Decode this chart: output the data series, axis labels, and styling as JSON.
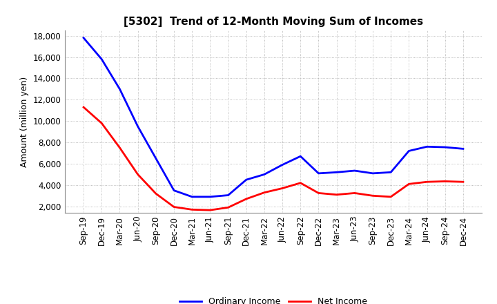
{
  "title": "[5302]  Trend of 12-Month Moving Sum of Incomes",
  "ylabel": "Amount (million yen)",
  "x_labels": [
    "Sep-19",
    "Dec-19",
    "Mar-20",
    "Jun-20",
    "Sep-20",
    "Dec-20",
    "Mar-21",
    "Jun-21",
    "Sep-21",
    "Dec-21",
    "Mar-22",
    "Jun-22",
    "Sep-22",
    "Dec-22",
    "Mar-23",
    "Jun-23",
    "Sep-23",
    "Dec-23",
    "Mar-24",
    "Jun-24",
    "Sep-24",
    "Dec-24"
  ],
  "ordinary_income": [
    17800,
    15800,
    13000,
    9500,
    6500,
    3500,
    2900,
    2900,
    3050,
    4500,
    5000,
    5900,
    6700,
    5100,
    5200,
    5350,
    5100,
    5200,
    7200,
    7600,
    7550,
    7400
  ],
  "net_income": [
    11300,
    9800,
    7500,
    5000,
    3200,
    1950,
    1700,
    1650,
    1900,
    2700,
    3300,
    3700,
    4200,
    3250,
    3100,
    3250,
    3000,
    2900,
    4100,
    4300,
    4350,
    4300
  ],
  "ordinary_color": "#0000FF",
  "net_color": "#FF0000",
  "background_color": "#FFFFFF",
  "grid_color": "#AAAAAA",
  "ylim": [
    1400,
    18500
  ],
  "yticks": [
    2000,
    4000,
    6000,
    8000,
    10000,
    12000,
    14000,
    16000,
    18000
  ],
  "legend_ordinary": "Ordinary Income",
  "legend_net": "Net Income",
  "linewidth": 2.0,
  "title_fontsize": 11,
  "tick_fontsize": 8.5,
  "ylabel_fontsize": 9
}
